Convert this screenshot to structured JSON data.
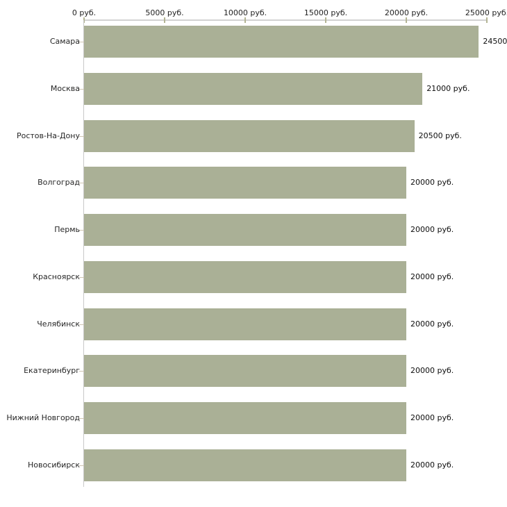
{
  "chart_data": {
    "type": "bar",
    "orientation": "horizontal",
    "title": "",
    "xlabel": "",
    "ylabel": "",
    "categories": [
      "Самара",
      "Москва",
      "Ростов-На-Дону",
      "Волгоград",
      "Пермь",
      "Красноярск",
      "Челябинск",
      "Екатеринбург",
      "Нижний Новгород",
      "Новосибирск"
    ],
    "values": [
      24500,
      21000,
      20500,
      20000,
      20000,
      20000,
      20000,
      20000,
      20000,
      20000
    ],
    "value_labels": [
      "24500",
      "21000 руб.",
      "20500 руб.",
      "20000 руб.",
      "20000 руб.",
      "20000 руб.",
      "20000 руб.",
      "20000 руб.",
      "20000 руб.",
      "20000 руб."
    ],
    "xlim": [
      0,
      25000
    ],
    "x_tick_values": [
      0,
      5000,
      10000,
      15000,
      20000,
      25000
    ],
    "x_tick_labels": [
      "0 руб.",
      "5000 руб.",
      "10000 руб.",
      "15000 руб.",
      "20000 руб.",
      "25000 руб."
    ],
    "x_axis_position": "top",
    "grid": false,
    "legend": null,
    "colors": {
      "bar_fill": "#aab096",
      "x_axis_line": "#d2d2d2",
      "x_tick": "#b3b493",
      "y_axis_line": "#c9c9c9",
      "category_tick": "#cfc5b2",
      "tick_label_text": "#1f1f1f",
      "category_text": "#262626",
      "value_text": "#0d0d0d",
      "background": "#ffffff"
    }
  }
}
